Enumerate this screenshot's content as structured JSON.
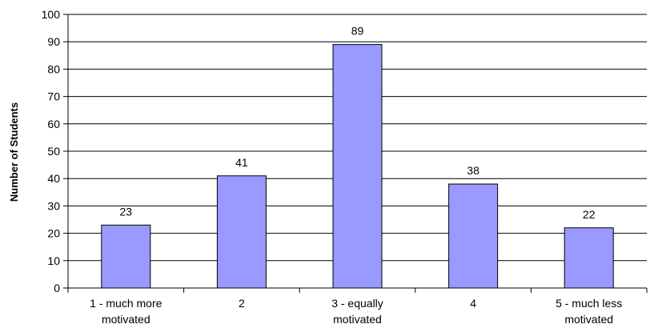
{
  "chart_data": {
    "type": "bar",
    "categories": [
      [
        "1 - much more",
        "motivated"
      ],
      [
        "2"
      ],
      [
        "3 - equally",
        "motivated"
      ],
      [
        "4"
      ],
      [
        "5 - much less",
        "motivated"
      ]
    ],
    "values": [
      23,
      41,
      89,
      38,
      22
    ],
    "data_labels": [
      "23",
      "41",
      "89",
      "38",
      "22"
    ],
    "title": "",
    "xlabel": "",
    "ylabel": "Number of Students",
    "ylim": [
      0,
      100
    ],
    "yticks": [
      0,
      10,
      20,
      30,
      40,
      50,
      60,
      70,
      80,
      90,
      100
    ],
    "grid": true,
    "bar_color": "#9999ff",
    "bar_stroke": "#000000",
    "grid_color": "#000000"
  }
}
